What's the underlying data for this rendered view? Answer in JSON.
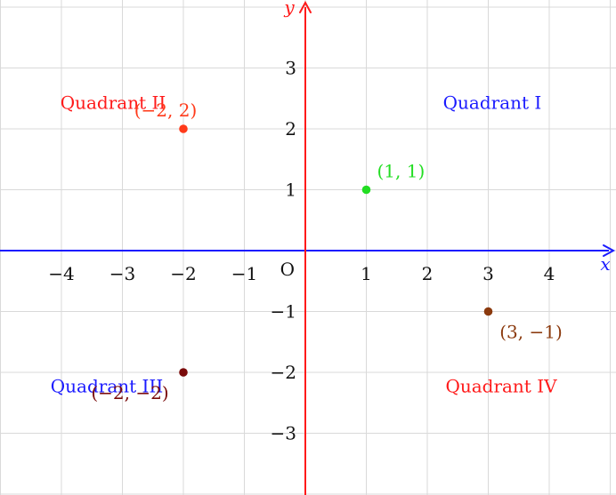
{
  "chart_data": {
    "type": "scatter",
    "xlim": [
      -5,
      5
    ],
    "ylim": [
      -4,
      4
    ],
    "grid": true,
    "x_axis": {
      "name": "x",
      "color": "#1a1aff"
    },
    "y_axis": {
      "name": "y",
      "color": "#ff1a1a"
    },
    "origin_label": "O",
    "x_ticks": [
      -4,
      -3,
      -2,
      -1,
      1,
      2,
      3,
      4
    ],
    "x_tick_labels": [
      "−4",
      "−3",
      "−2",
      "−1",
      "1",
      "2",
      "3",
      "4"
    ],
    "y_ticks": [
      3,
      2,
      1,
      -1,
      -2,
      -3
    ],
    "y_tick_labels": [
      "3",
      "2",
      "1",
      "−1",
      "−2",
      "−3"
    ],
    "points": [
      {
        "x": 1,
        "y": 1,
        "label": "(1, 1)",
        "color": "#22dd22"
      },
      {
        "x": -2,
        "y": 2,
        "label": "(−2, 2)",
        "color": "#ff3a1a"
      },
      {
        "x": -2,
        "y": -2,
        "label": "(−2, −2)",
        "color": "#7a0a0a"
      },
      {
        "x": 3,
        "y": -1,
        "label": "(3, −1)",
        "color": "#8b3a0e"
      }
    ],
    "quadrants": [
      {
        "text": "Quadrant I",
        "color": "#1a1aff"
      },
      {
        "text": "Quadrant II",
        "color": "#ff1a1a"
      },
      {
        "text": "Quadrant III",
        "color": "#1a1aff"
      },
      {
        "text": "Quadrant IV",
        "color": "#ff1a1a"
      }
    ]
  }
}
